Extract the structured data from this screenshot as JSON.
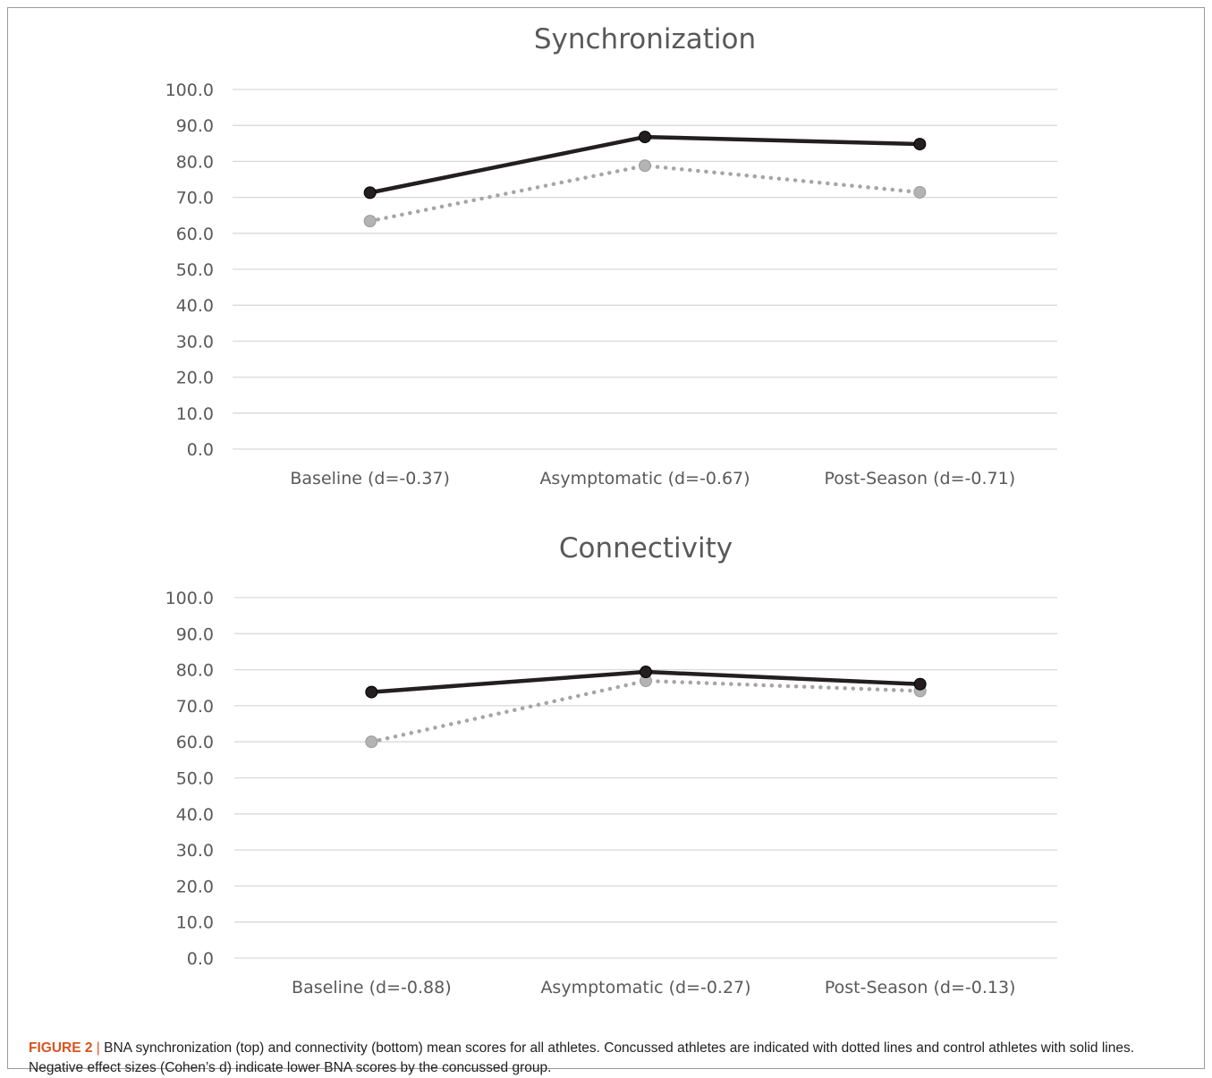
{
  "chart_data": [
    {
      "type": "line",
      "title": "Synchronization",
      "categories": [
        "Baseline (d=-0.37)",
        "Asymptomatic (d=-0.67)",
        "Post-Season (d=-0.71)"
      ],
      "ylim": [
        0,
        100
      ],
      "yticks": [
        "0.0",
        "10.0",
        "20.0",
        "30.0",
        "40.0",
        "50.0",
        "60.0",
        "70.0",
        "80.0",
        "90.0",
        "100.0"
      ],
      "grid": true,
      "series": [
        {
          "values": [
            71.3,
            86.8,
            84.8
          ],
          "style": "solid",
          "color": "#231f20"
        },
        {
          "values": [
            63.4,
            78.8,
            71.4
          ],
          "style": "dotted",
          "color": "#a6a6a6"
        }
      ]
    },
    {
      "type": "line",
      "title": "Connectivity",
      "categories": [
        "Baseline (d=-0.88)",
        "Asymptomatic (d=-0.27)",
        "Post-Season (d=-0.13)"
      ],
      "ylim": [
        0,
        100
      ],
      "yticks": [
        "0.0",
        "10.0",
        "20.0",
        "30.0",
        "40.0",
        "50.0",
        "60.0",
        "70.0",
        "80.0",
        "90.0",
        "100.0"
      ],
      "grid": true,
      "series": [
        {
          "values": [
            73.8,
            79.4,
            76.0
          ],
          "style": "solid",
          "color": "#231f20"
        },
        {
          "values": [
            60.0,
            76.9,
            74.1
          ],
          "style": "dotted",
          "color": "#a6a6a6"
        }
      ]
    }
  ],
  "caption": {
    "label": "FIGURE 2",
    "separator": " | ",
    "text": "BNA synchronization (top) and connectivity (bottom) mean scores for all athletes. Concussed athletes are indicated with dotted lines and control athletes with solid lines. Negative effect sizes (Cohen’s d) indicate lower BNA scores by the concussed group."
  }
}
